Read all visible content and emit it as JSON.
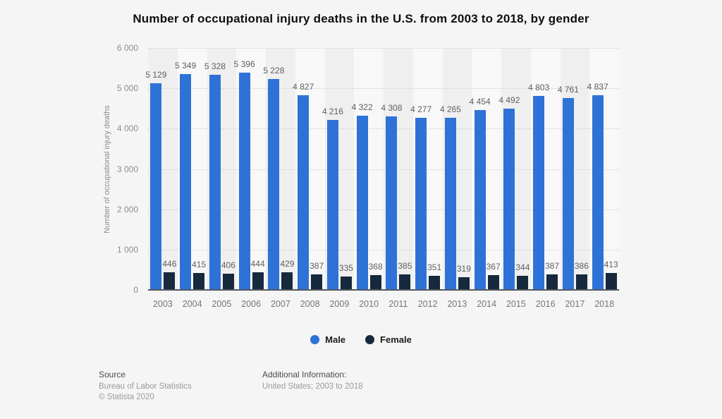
{
  "title": "Number of occupational injury deaths in the U.S. from 2003 to 2018, by gender",
  "chart_data": {
    "type": "bar",
    "title": "Number of occupational injury deaths in the U.S. from 2003 to 2018, by gender",
    "xlabel": "",
    "ylabel": "Number of occupational injury deaths",
    "ylim": [
      0,
      6000
    ],
    "ytick_interval": 1000,
    "ytick_labels": [
      "0",
      "1 000",
      "2 000",
      "3 000",
      "4 000",
      "5 000",
      "6 000"
    ],
    "grid": "horizontal-dotted",
    "legend_position": "bottom",
    "categories": [
      "2003",
      "2004",
      "2005",
      "2006",
      "2007",
      "2008",
      "2009",
      "2010",
      "2011",
      "2012",
      "2013",
      "2014",
      "2015",
      "2016",
      "2017",
      "2018"
    ],
    "series": [
      {
        "name": "Male",
        "color": "#2e72d8",
        "values": [
          5129,
          5349,
          5328,
          5396,
          5228,
          4827,
          4216,
          4322,
          4308,
          4277,
          4265,
          4454,
          4492,
          4803,
          4761,
          4837
        ],
        "labels": [
          "5 129",
          "5 349",
          "5 328",
          "5 396",
          "5 228",
          "4 827",
          "4 216",
          "4 322",
          "4 308",
          "4 277",
          "4 265",
          "4 454",
          "4 492",
          "4 803",
          "4 761",
          "4 837"
        ]
      },
      {
        "name": "Female",
        "color": "#16293d",
        "values": [
          446,
          415,
          406,
          444,
          429,
          387,
          335,
          368,
          385,
          351,
          319,
          367,
          344,
          387,
          386,
          413
        ],
        "labels": [
          "446",
          "415",
          "406",
          "444",
          "429",
          "387",
          "335",
          "368",
          "385",
          "351",
          "319",
          "367",
          "344",
          "387",
          "386",
          "413"
        ]
      }
    ]
  },
  "footer": {
    "source_heading": "Source",
    "source_line1": "Bureau of Labor Statistics",
    "source_line2": "© Statista 2020",
    "additional_heading": "Additional Information:",
    "additional_line1": "United States; 2003 to 2018"
  },
  "colors": {
    "page_background": "#f5f5f5",
    "band_dark": "#efefef",
    "band_light": "#f8f8f8",
    "male_bar": "#2e72d8",
    "female_bar": "#16293d"
  }
}
